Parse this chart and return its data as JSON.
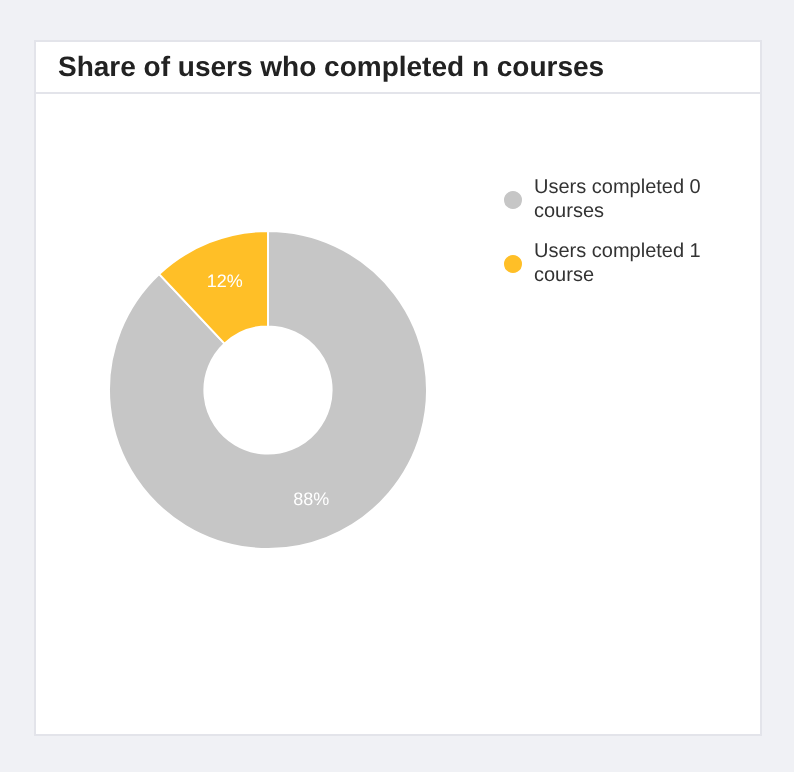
{
  "chart_data": {
    "type": "donut",
    "title": "Share of users who completed n courses",
    "categories": [
      "Users completed 0 courses",
      "Users completed 1 course"
    ],
    "values": [
      88,
      12
    ],
    "colors": [
      "#c6c6c6",
      "#ffbf27"
    ],
    "value_labels": [
      "88%",
      "12%"
    ],
    "legend": "top right"
  }
}
